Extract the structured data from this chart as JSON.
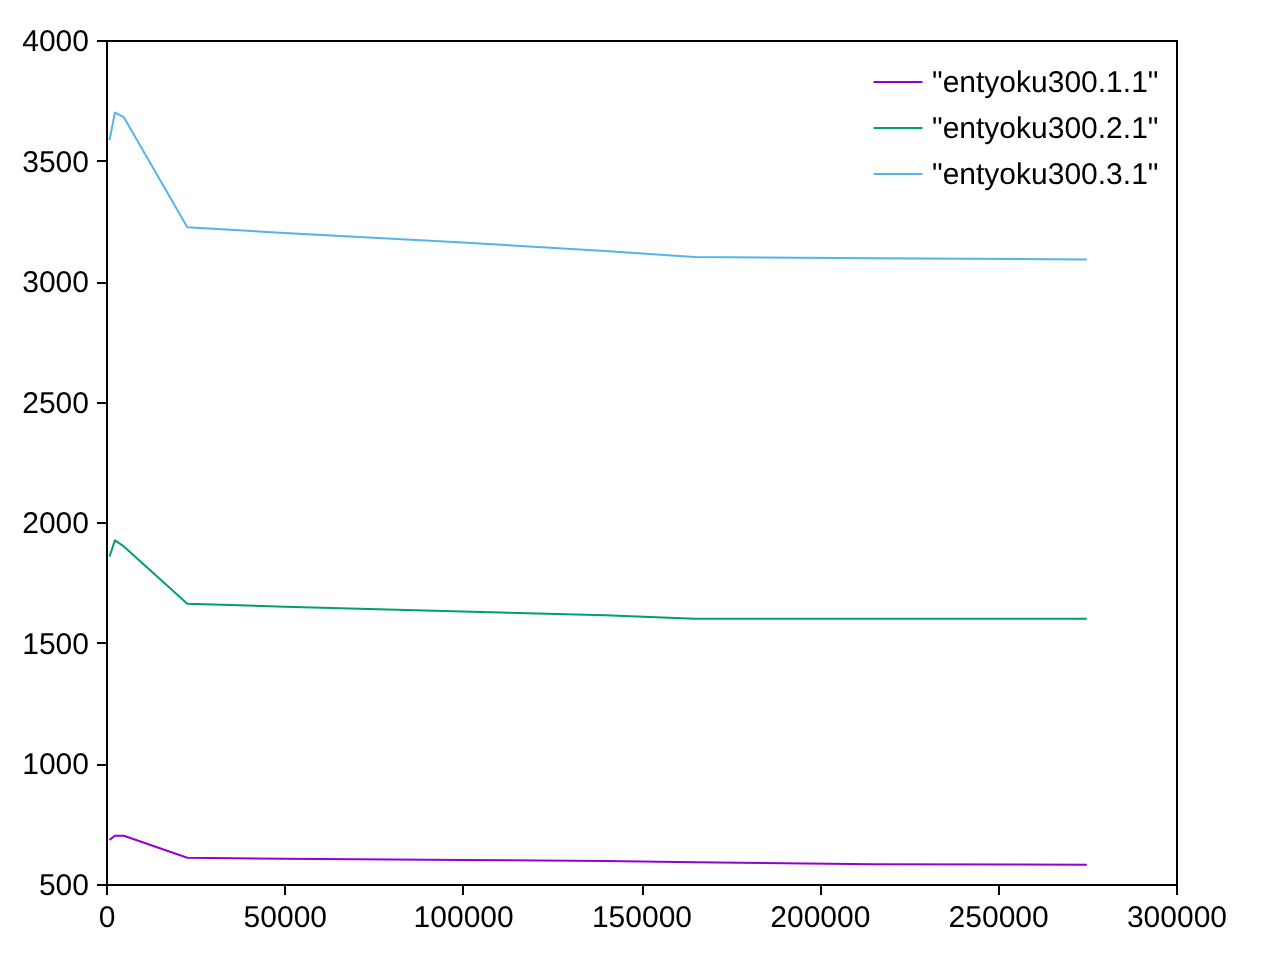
{
  "chart_data": {
    "type": "line",
    "xlim": [
      0,
      300000
    ],
    "ylim": [
      500,
      4000
    ],
    "xticks": [
      0,
      50000,
      100000,
      150000,
      200000,
      250000,
      300000
    ],
    "yticks": [
      500,
      1000,
      1500,
      2000,
      2500,
      3000,
      3500,
      4000
    ],
    "grid": false,
    "legend": "top right",
    "marker": "none",
    "line_style": "solid",
    "series": [
      {
        "name": "\"entyoku300.1.1\"",
        "color": "#9400d3",
        "x": [
          1000,
          2500,
          5000,
          22800,
          50000,
          100000,
          140000,
          165000,
          215000,
          275000
        ],
        "values": [
          683,
          700,
          700,
          609,
          605,
          600,
          595,
          590,
          582,
          580
        ]
      },
      {
        "name": "\"entyoku300.2.1\"",
        "color": "#009e73",
        "x": [
          1000,
          2500,
          5000,
          22800,
          50000,
          100000,
          140000,
          165000,
          215000,
          275000
        ],
        "values": [
          1858,
          1925,
          1900,
          1662,
          1650,
          1630,
          1615,
          1600,
          1600,
          1600
        ]
      },
      {
        "name": "\"entyoku300.3.1\"",
        "color": "#56b4e9",
        "x": [
          1000,
          2500,
          5000,
          22800,
          50000,
          100000,
          140000,
          165000,
          215000,
          275000
        ],
        "values": [
          3585,
          3699,
          3680,
          3223,
          3200,
          3160,
          3125,
          3100,
          3095,
          3090
        ]
      }
    ]
  }
}
